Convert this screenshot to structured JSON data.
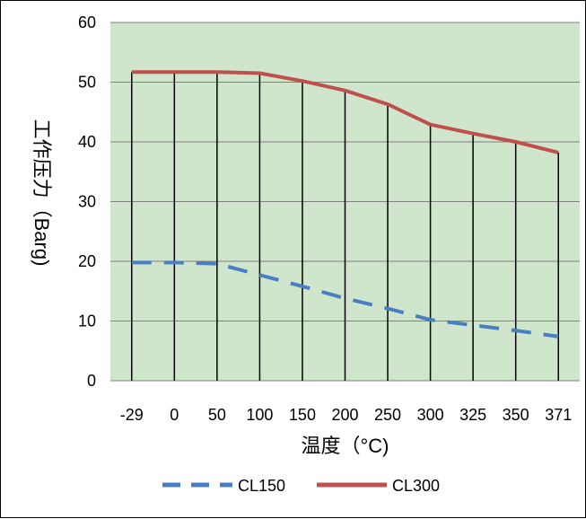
{
  "chart_data": {
    "type": "line",
    "categories": [
      "-29",
      "0",
      "50",
      "100",
      "150",
      "200",
      "250",
      "300",
      "325",
      "350",
      "371"
    ],
    "xlabel": "温度（°C)",
    "ylabel": "工作压力（Barg)",
    "ylim": [
      0,
      60
    ],
    "yticks": [
      0,
      10,
      20,
      30,
      40,
      50,
      60
    ],
    "grid": true,
    "vertical_droplines": true,
    "legend_position": "bottom",
    "series": [
      {
        "name": "CL150",
        "color": "#4a7ec2",
        "style": "dashed",
        "values": [
          19.8,
          19.8,
          19.6,
          17.7,
          15.8,
          13.8,
          12.1,
          10.2,
          9.3,
          8.4,
          7.4
        ]
      },
      {
        "name": "CL300",
        "color": "#c0504d",
        "style": "solid",
        "values": [
          51.7,
          51.7,
          51.7,
          51.5,
          50.2,
          48.6,
          46.3,
          42.9,
          41.4,
          40.0,
          38.2
        ]
      }
    ]
  },
  "colors": {
    "plot_background": "#cfe6cc",
    "gridline": "#808080",
    "dropline": "#000000"
  }
}
